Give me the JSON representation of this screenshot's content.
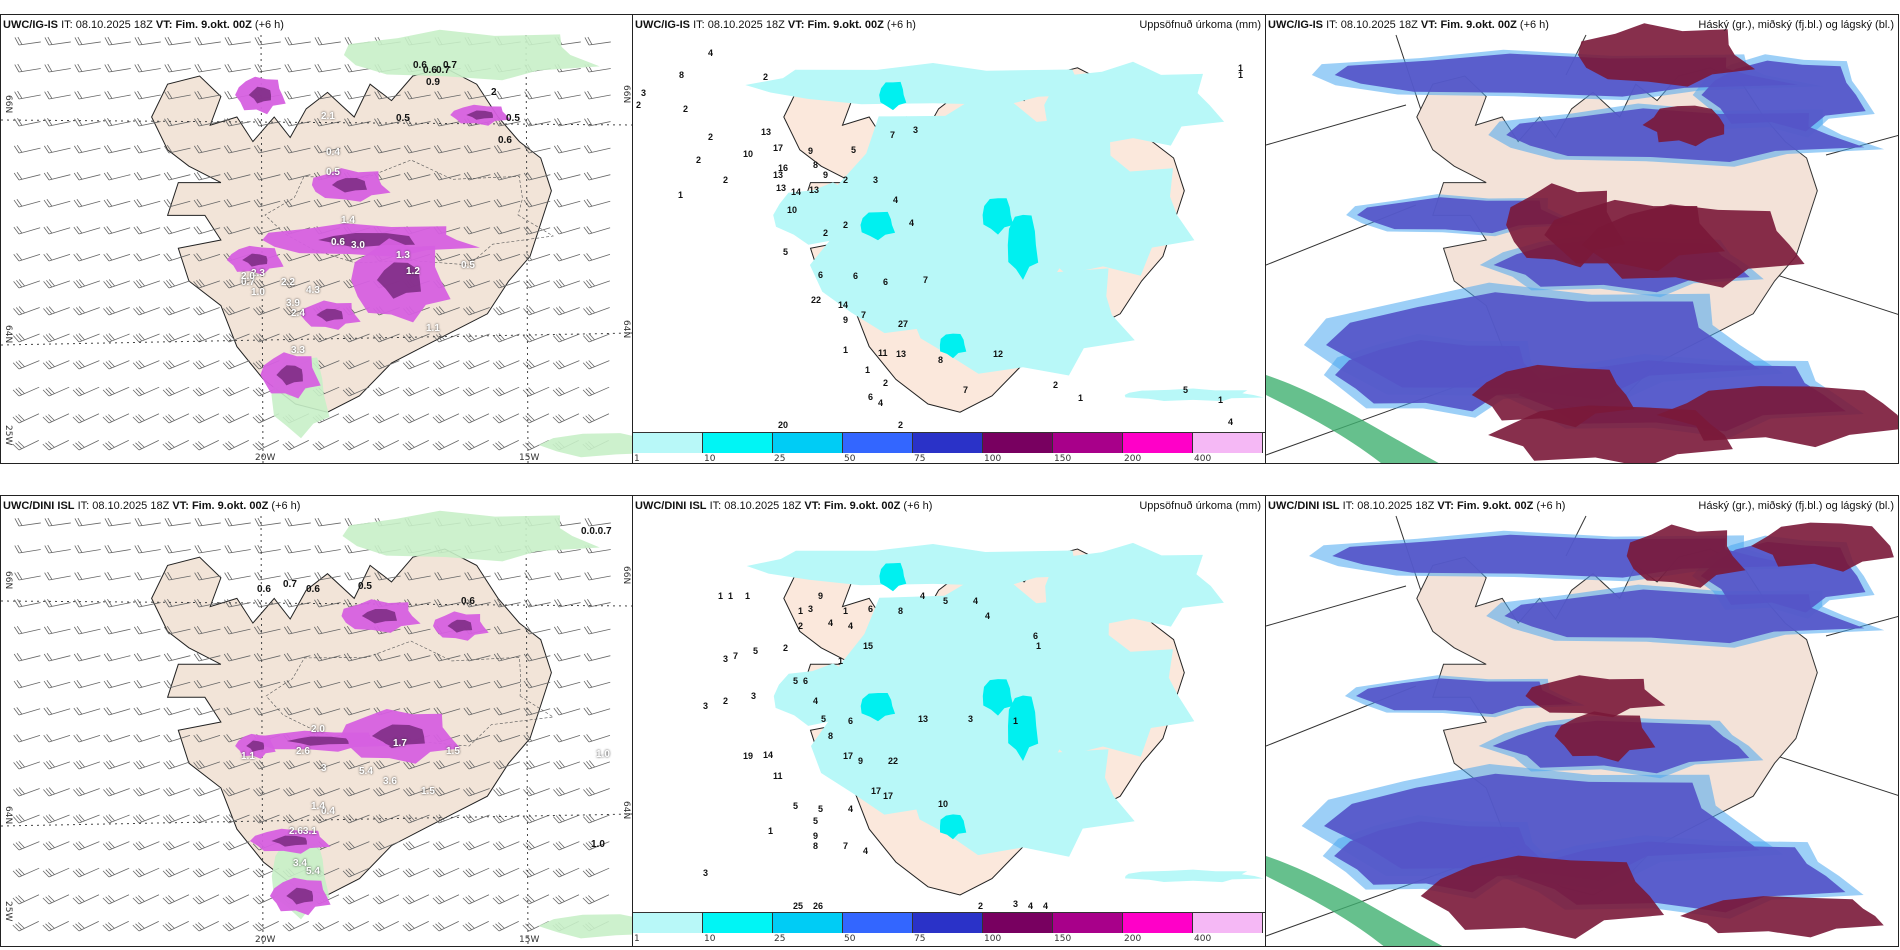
{
  "panels": [
    {
      "id": "top-left",
      "model": "UWC/IG-IS",
      "it_label": "IT:",
      "it_value": "08.10.2025 18Z",
      "vt_label": "VT: Fim. 9.okt. 00Z",
      "lead": "(+6 h)",
      "right_title": "",
      "axis": {
        "lat_left": [
          "66N",
          "64N",
          "25W"
        ],
        "lat_right": [
          "66N",
          "64N"
        ],
        "lon_bottom": [
          "20W",
          "15W"
        ]
      },
      "magenta_labels": [
        "1.4",
        "3.0",
        "1.3",
        "0.5",
        "2.3",
        "2.2",
        "1.0",
        "3.9",
        "4.3",
        "2.4",
        "1.1",
        "3.3",
        "2.1",
        "0.4",
        "0.5",
        "0.7",
        "0.6",
        "1.2",
        "2.0"
      ],
      "green_labels": [
        "0.6",
        "0.6",
        "0.7",
        "0.9",
        "0.5",
        "0.5",
        "0.6",
        "2",
        "0.7"
      ]
    },
    {
      "id": "top-middle",
      "model": "UWC/IG-IS",
      "it_label": "IT:",
      "it_value": "08.10.2025 18Z",
      "vt_label": "VT: Fim. 9.okt. 00Z",
      "lead": "(+6 h)",
      "right_title": "Uppsöfnuð úrkoma (mm)",
      "precip_labels": [
        "8",
        "4",
        "2",
        "2",
        "3",
        "2",
        "2",
        "2",
        "2",
        "1",
        "13",
        "17",
        "16",
        "10",
        "13",
        "13",
        "14",
        "13",
        "10",
        "9",
        "8",
        "9",
        "5",
        "2",
        "3",
        "7",
        "3",
        "4",
        "4",
        "2",
        "2",
        "5",
        "6",
        "6",
        "6",
        "7",
        "22",
        "14",
        "9",
        "7",
        "27",
        "11",
        "13",
        "12",
        "8",
        "1",
        "1",
        "2",
        "6",
        "4",
        "7",
        "2",
        "20",
        "2",
        "1",
        "5",
        "4",
        "1",
        "1",
        "1"
      ]
    },
    {
      "id": "top-right",
      "model": "UWC/IG-IS",
      "it_label": "IT:",
      "it_value": "08.10.2025 18Z",
      "vt_label": "VT: Fim. 9.okt. 00Z",
      "lead": "(+6 h)",
      "right_title": "Háský (gr.), miðský (fj.bl.) og lágský (bl.)"
    },
    {
      "id": "bottom-left",
      "model": "UWC/DINI ISL",
      "it_label": "IT:",
      "it_value": "08.10.2025 18Z",
      "vt_label": "VT: Fim. 9.okt. 00Z",
      "lead": "(+6 h)",
      "right_title": "",
      "axis": {
        "lat_left": [
          "66N",
          "64N",
          "25W"
        ],
        "lat_right": [
          "66N",
          "64N"
        ],
        "lon_bottom": [
          "20W",
          "15W"
        ]
      },
      "magenta_labels": [
        "1.1",
        "2.6",
        "2.0",
        "1.7",
        "5.4",
        "3.6",
        "1.5",
        "2.63.1",
        "3.4",
        "5.4",
        "0.4",
        "1.4",
        "1.5",
        "3",
        "1.0"
      ],
      "green_labels": [
        "0.6",
        "0.7",
        "0.6",
        "0.5",
        "0.6",
        "0.0.0.7",
        "1.0"
      ]
    },
    {
      "id": "bottom-middle",
      "model": "UWC/DINI ISL",
      "it_label": "IT:",
      "it_value": "08.10.2025 18Z",
      "vt_label": "VT: Fim. 9.okt. 00Z",
      "lead": "(+6 h)",
      "right_title": "Uppsöfnuð úrkoma (mm)",
      "precip_labels": [
        "1",
        "1",
        "1",
        "1",
        "1",
        "2",
        "3",
        "4",
        "4",
        "9",
        "6",
        "8",
        "4",
        "5",
        "4",
        "4",
        "6",
        "1",
        "15",
        "2",
        "7",
        "5",
        "3",
        "5",
        "6",
        "1",
        "3",
        "2",
        "3",
        "4",
        "5",
        "6",
        "13",
        "3",
        "1",
        "8",
        "19",
        "14",
        "17",
        "11",
        "9",
        "22",
        "17",
        "17",
        "10",
        "5",
        "5",
        "5",
        "4",
        "1",
        "8",
        "9",
        "7",
        "4",
        "25",
        "26",
        "3",
        "4",
        "2",
        "3",
        "4"
      ]
    },
    {
      "id": "bottom-right",
      "model": "UWC/DINI ISL",
      "it_label": "IT:",
      "it_value": "08.10.2025 18Z",
      "vt_label": "VT: Fim. 9.okt. 00Z",
      "lead": "(+6 h)",
      "right_title": "Háský (gr.), miðský (fj.bl.) og lágský (bl.)"
    }
  ],
  "colorbar": {
    "ticks": [
      "1",
      "10",
      "25",
      "50",
      "75",
      "100",
      "150",
      "200",
      "400"
    ],
    "colors": [
      "#b8f8f8",
      "#00f5f5",
      "#00ccf5",
      "#3366ff",
      "#2a32c8",
      "#780060",
      "#a8008a",
      "#ff00c8",
      "#f5b8f5"
    ]
  },
  "colors": {
    "land": "#f2e4d8",
    "land_mid": "#fbeadb",
    "light_precip": "#b8f8f8",
    "mid_precip": "#00f0f0",
    "magenta": "#d660e0",
    "magenta_dark": "#7a2a80",
    "green": "#c8f0c8",
    "green_dark": "#2f8a3a",
    "cloud_low": "#5555c8",
    "cloud_high": "#7a1838",
    "cloud_edge": "#4aa8f0"
  }
}
